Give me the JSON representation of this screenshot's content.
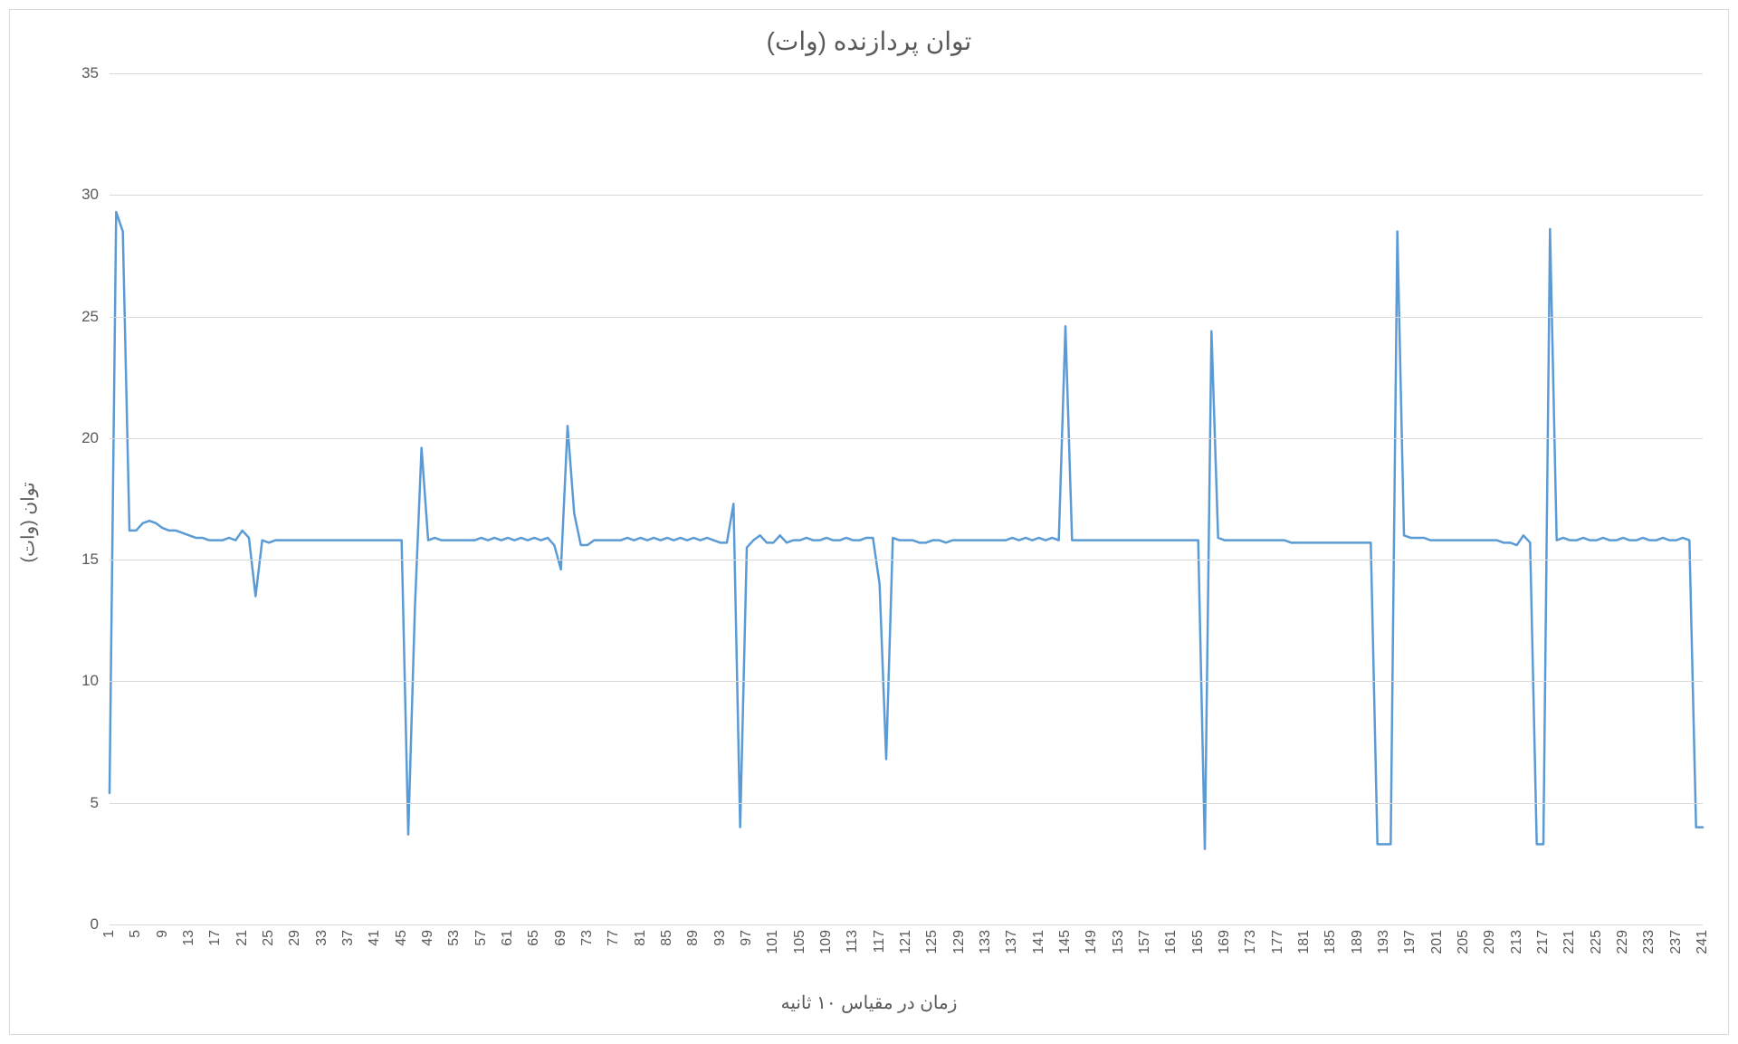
{
  "chart": {
    "type": "line",
    "title": "توان پردازنده (وات)",
    "title_fontsize": 28,
    "x_axis_title": "زمان در مقیاس ۱۰ ثانیه",
    "y_axis_title": "توان (وات)",
    "axis_label_fontsize": 20,
    "tick_fontsize": 17,
    "background_color": "#ffffff",
    "border_color": "#d9d9d9",
    "grid_color": "#d9d9d9",
    "text_color": "#595959",
    "line_color": "#5b9bd5",
    "line_width": 2.5,
    "ylim": [
      0,
      35
    ],
    "ytick_step": 5,
    "y_ticks": [
      0,
      5,
      10,
      15,
      20,
      25,
      30,
      35
    ],
    "x_tick_step_display": 4,
    "x_start": 1,
    "x_end": 241,
    "values": [
      5.4,
      29.3,
      28.5,
      16.2,
      16.2,
      16.5,
      16.6,
      16.5,
      16.3,
      16.2,
      16.2,
      16.1,
      16.0,
      15.9,
      15.9,
      15.8,
      15.8,
      15.8,
      15.9,
      15.8,
      16.2,
      15.9,
      13.5,
      15.8,
      15.7,
      15.8,
      15.8,
      15.8,
      15.8,
      15.8,
      15.8,
      15.8,
      15.8,
      15.8,
      15.8,
      15.8,
      15.8,
      15.8,
      15.8,
      15.8,
      15.8,
      15.8,
      15.8,
      15.8,
      15.8,
      3.7,
      13.0,
      19.6,
      15.8,
      15.9,
      15.8,
      15.8,
      15.8,
      15.8,
      15.8,
      15.8,
      15.9,
      15.8,
      15.9,
      15.8,
      15.9,
      15.8,
      15.9,
      15.8,
      15.9,
      15.8,
      15.9,
      15.6,
      14.6,
      20.5,
      16.9,
      15.6,
      15.6,
      15.8,
      15.8,
      15.8,
      15.8,
      15.8,
      15.9,
      15.8,
      15.9,
      15.8,
      15.9,
      15.8,
      15.9,
      15.8,
      15.9,
      15.8,
      15.9,
      15.8,
      15.9,
      15.8,
      15.7,
      15.7,
      17.3,
      4.0,
      15.5,
      15.8,
      16.0,
      15.7,
      15.7,
      16.0,
      15.7,
      15.8,
      15.8,
      15.9,
      15.8,
      15.8,
      15.9,
      15.8,
      15.8,
      15.9,
      15.8,
      15.8,
      15.9,
      15.9,
      14.0,
      6.8,
      15.9,
      15.8,
      15.8,
      15.8,
      15.7,
      15.7,
      15.8,
      15.8,
      15.7,
      15.8,
      15.8,
      15.8,
      15.8,
      15.8,
      15.8,
      15.8,
      15.8,
      15.8,
      15.9,
      15.8,
      15.9,
      15.8,
      15.9,
      15.8,
      15.9,
      15.8,
      24.6,
      15.8,
      15.8,
      15.8,
      15.8,
      15.8,
      15.8,
      15.8,
      15.8,
      15.8,
      15.8,
      15.8,
      15.8,
      15.8,
      15.8,
      15.8,
      15.8,
      15.8,
      15.8,
      15.8,
      15.8,
      3.1,
      24.4,
      15.9,
      15.8,
      15.8,
      15.8,
      15.8,
      15.8,
      15.8,
      15.8,
      15.8,
      15.8,
      15.8,
      15.7,
      15.7,
      15.7,
      15.7,
      15.7,
      15.7,
      15.7,
      15.7,
      15.7,
      15.7,
      15.7,
      15.7,
      15.7,
      3.3,
      3.3,
      3.3,
      28.5,
      16.0,
      15.9,
      15.9,
      15.9,
      15.8,
      15.8,
      15.8,
      15.8,
      15.8,
      15.8,
      15.8,
      15.8,
      15.8,
      15.8,
      15.8,
      15.7,
      15.7,
      15.6,
      16.0,
      15.7,
      3.3,
      3.3,
      28.6,
      15.8,
      15.9,
      15.8,
      15.8,
      15.9,
      15.8,
      15.8,
      15.9,
      15.8,
      15.8,
      15.9,
      15.8,
      15.8,
      15.9,
      15.8,
      15.8,
      15.9,
      15.8,
      15.8,
      15.9,
      15.8,
      4.0,
      4.0
    ]
  }
}
